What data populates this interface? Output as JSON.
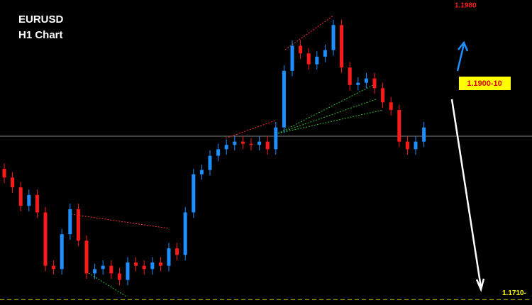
{
  "chart_data": {
    "type": "candlestick",
    "title": "EURUSD",
    "subtitle": "H1 Chart",
    "up_color": "#1e8fff",
    "down_color": "#ff1a1a",
    "ylim": [
      1.1705,
      1.1985
    ],
    "open": [
      1.183,
      1.1822,
      1.1813,
      1.1796,
      1.1806,
      1.179,
      1.1741,
      1.1738,
      1.177,
      1.1793,
      1.1764,
      1.1734,
      1.1738,
      1.1741,
      1.1734,
      1.1728,
      1.1744,
      1.1741,
      1.1738,
      1.1744,
      1.1741,
      1.1757,
      1.1751,
      1.179,
      1.1825,
      1.1829,
      1.1842,
      1.1848,
      1.1852,
      1.1855,
      1.1853,
      1.1852,
      1.1855,
      1.1848,
      1.1868,
      1.192,
      1.1943,
      1.1936,
      1.1926,
      1.1933,
      1.1939,
      1.1962,
      1.1923,
      1.1907,
      1.1909,
      1.1913,
      1.1904,
      1.1891,
      1.1884,
      1.1855,
      1.1848,
      1.1855
    ],
    "high": [
      1.1835,
      1.1827,
      1.1818,
      1.1811,
      1.1811,
      1.1795,
      1.1746,
      1.1775,
      1.1798,
      1.1798,
      1.1769,
      1.1743,
      1.1746,
      1.1746,
      1.1739,
      1.1749,
      1.1749,
      1.1746,
      1.1749,
      1.1749,
      1.1762,
      1.1762,
      1.1795,
      1.183,
      1.1834,
      1.1847,
      1.1853,
      1.1857,
      1.186,
      1.186,
      1.1858,
      1.186,
      1.186,
      1.1873,
      1.1925,
      1.1948,
      1.1948,
      1.1941,
      1.1938,
      1.1944,
      1.1967,
      1.1967,
      1.1928,
      1.1914,
      1.1918,
      1.1918,
      1.1909,
      1.1896,
      1.1889,
      1.186,
      1.186,
      1.1873
    ],
    "low": [
      1.1817,
      1.1808,
      1.1791,
      1.1791,
      1.1785,
      1.1736,
      1.1733,
      1.1733,
      1.1765,
      1.1759,
      1.1729,
      1.1729,
      1.1733,
      1.1729,
      1.1723,
      1.1723,
      1.1736,
      1.1733,
      1.1733,
      1.1736,
      1.1736,
      1.1746,
      1.1746,
      1.1785,
      1.182,
      1.1824,
      1.1837,
      1.1843,
      1.1847,
      1.1848,
      1.1847,
      1.1847,
      1.1843,
      1.1843,
      1.1863,
      1.1915,
      1.1931,
      1.1921,
      1.1921,
      1.1928,
      1.1934,
      1.1918,
      1.1902,
      1.1902,
      1.1904,
      1.1899,
      1.1886,
      1.1879,
      1.185,
      1.1843,
      1.1843,
      1.185
    ],
    "close": [
      1.1822,
      1.1813,
      1.1796,
      1.1806,
      1.179,
      1.1741,
      1.1738,
      1.177,
      1.1793,
      1.1764,
      1.1734,
      1.1738,
      1.1741,
      1.1734,
      1.1728,
      1.1744,
      1.1741,
      1.1738,
      1.1744,
      1.1741,
      1.1757,
      1.1751,
      1.179,
      1.1825,
      1.1829,
      1.1842,
      1.1848,
      1.1852,
      1.1855,
      1.1853,
      1.1852,
      1.1855,
      1.1848,
      1.1868,
      1.192,
      1.1943,
      1.1936,
      1.1926,
      1.1933,
      1.1939,
      1.1962,
      1.1923,
      1.1907,
      1.1909,
      1.1913,
      1.1904,
      1.1891,
      1.1884,
      1.1855,
      1.1848,
      1.1855,
      1.1868
    ],
    "levels": [
      {
        "value": 1.186,
        "color": "#808080",
        "dashed": false
      },
      {
        "value": 1.171,
        "color": "#b5a600",
        "dashed": true
      }
    ],
    "annotations": [
      {
        "value": 1.198,
        "label": "1.1980",
        "color": "#ff1a1a"
      },
      {
        "value": 1.171,
        "label": "1.1710-",
        "color": "#ffff00"
      }
    ],
    "target_box": "1.1900-10"
  }
}
